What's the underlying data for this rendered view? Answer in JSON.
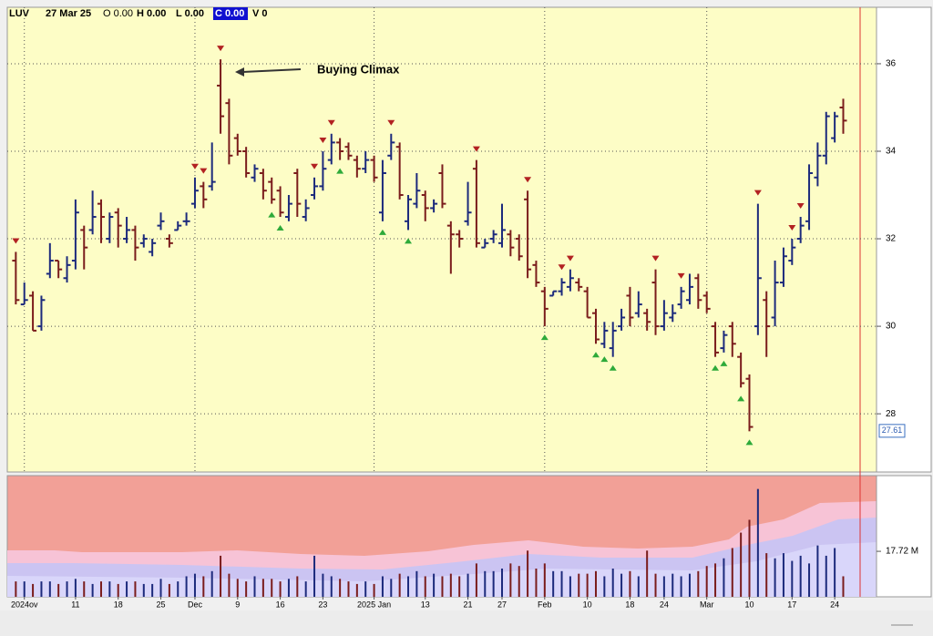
{
  "header": {
    "symbol": "LUV",
    "date": "27 Mar 25",
    "open": "O 0.00",
    "high": "H 0.00",
    "low": "L 0.00",
    "close": "C 0.00",
    "volume": "V 0"
  },
  "chart_data": {
    "type": "ohlc",
    "up_color": "#1c2a7c",
    "down_color": "#7a1c1c",
    "open": [
      31.5,
      30.5,
      30.7,
      30.0,
      31.2,
      31.5,
      31.1,
      31.5,
      32.2,
      32.2,
      32.8,
      32.0,
      32.6,
      32.0,
      32.2,
      31.9,
      31.7,
      32.3,
      32.0,
      32.2,
      32.4,
      32.8,
      33.2,
      33.2,
      35.5,
      35.1,
      34.3,
      34.0,
      33.4,
      33.5,
      33.3,
      33.1,
      32.5,
      33.5,
      32.5,
      33.0,
      33.2,
      33.8,
      34.2,
      34.1,
      33.8,
      33.6,
      33.8,
      32.6,
      33.9,
      34.1,
      32.4,
      32.8,
      33.0,
      32.7,
      33.5,
      32.3,
      32.1,
      32.4,
      33.6,
      31.8,
      32.0,
      31.9,
      32.1,
      32.0,
      32.9,
      31.4,
      30.8,
      30.7,
      30.8,
      30.9,
      31.0,
      30.8,
      30.3,
      29.6,
      29.5,
      30.0,
      30.7,
      30.3,
      30.3,
      31.0,
      30.0,
      30.2,
      30.5,
      30.6,
      31.1,
      30.7,
      30.0,
      29.5,
      30.0,
      29.3,
      28.8,
      30.0,
      30.6,
      30.2,
      31.0,
      31.5,
      32.0,
      32.4,
      33.4,
      33.9,
      34.3,
      35.0
    ],
    "high": [
      31.7,
      31.0,
      30.8,
      30.7,
      31.9,
      31.5,
      31.6,
      32.9,
      32.3,
      33.1,
      32.9,
      32.6,
      32.7,
      32.5,
      32.3,
      32.1,
      32.0,
      32.6,
      32.1,
      32.4,
      32.6,
      33.4,
      33.3,
      34.2,
      36.1,
      35.2,
      34.4,
      34.1,
      33.7,
      33.6,
      33.4,
      33.2,
      33.0,
      33.6,
      32.9,
      33.4,
      34.0,
      34.4,
      34.3,
      34.2,
      33.9,
      34.0,
      33.9,
      33.8,
      34.4,
      34.2,
      33.0,
      33.5,
      33.1,
      32.9,
      33.7,
      32.4,
      32.2,
      33.3,
      33.8,
      32.0,
      32.2,
      32.8,
      32.2,
      32.1,
      33.1,
      31.5,
      30.9,
      30.8,
      31.1,
      31.3,
      31.1,
      30.9,
      30.4,
      30.1,
      30.1,
      30.4,
      30.9,
      30.8,
      30.4,
      31.3,
      30.6,
      30.5,
      30.9,
      31.2,
      31.2,
      30.8,
      30.1,
      29.9,
      30.1,
      29.4,
      28.9,
      32.8,
      30.8,
      31.5,
      31.8,
      32.0,
      32.5,
      33.7,
      34.2,
      34.9,
      34.9,
      35.2
    ],
    "low": [
      30.5,
      30.5,
      29.9,
      29.9,
      31.1,
      31.1,
      31.0,
      31.3,
      31.3,
      32.1,
      31.9,
      31.9,
      31.8,
      31.9,
      31.5,
      31.8,
      31.6,
      32.2,
      31.8,
      32.2,
      32.3,
      32.7,
      32.7,
      33.1,
      34.4,
      33.7,
      33.9,
      33.4,
      33.3,
      32.9,
      32.8,
      32.5,
      32.4,
      32.5,
      32.4,
      32.9,
      33.1,
      33.7,
      33.8,
      33.8,
      33.4,
      33.5,
      33.3,
      32.4,
      33.8,
      32.9,
      32.2,
      32.7,
      32.4,
      32.6,
      32.7,
      31.2,
      31.8,
      32.3,
      31.8,
      31.8,
      31.9,
      31.8,
      31.6,
      31.5,
      31.1,
      30.9,
      30.0,
      30.7,
      30.7,
      30.8,
      30.8,
      30.2,
      29.6,
      29.5,
      29.3,
      29.9,
      30.0,
      30.2,
      29.9,
      29.8,
      29.9,
      30.1,
      30.4,
      30.5,
      30.4,
      30.3,
      29.3,
      29.4,
      29.3,
      28.6,
      27.6,
      29.8,
      29.3,
      30.0,
      30.9,
      31.4,
      31.9,
      32.2,
      33.2,
      33.7,
      34.2,
      34.4
    ],
    "close": [
      30.6,
      30.6,
      29.9,
      30.6,
      31.5,
      31.3,
      31.4,
      32.6,
      31.8,
      32.5,
      32.5,
      32.5,
      32.3,
      32.2,
      31.8,
      32.0,
      31.9,
      32.4,
      31.9,
      32.3,
      32.4,
      33.1,
      32.9,
      33.3,
      34.8,
      33.9,
      34.0,
      33.5,
      33.6,
      33.1,
      32.9,
      32.6,
      32.8,
      32.8,
      32.7,
      33.2,
      33.6,
      34.2,
      34.0,
      33.9,
      33.6,
      33.8,
      33.4,
      33.5,
      34.2,
      33.0,
      32.9,
      33.1,
      32.7,
      32.8,
      32.8,
      32.1,
      32.0,
      32.6,
      31.9,
      31.9,
      32.1,
      32.2,
      31.8,
      31.6,
      31.3,
      31.0,
      30.4,
      30.8,
      31.0,
      31.1,
      30.9,
      30.2,
      29.7,
      29.9,
      29.9,
      30.2,
      30.2,
      30.5,
      30.1,
      30.0,
      30.3,
      30.3,
      30.8,
      30.9,
      30.6,
      30.4,
      29.4,
      29.8,
      29.6,
      28.7,
      27.7,
      31.1,
      30.0,
      31.0,
      31.6,
      31.8,
      32.3,
      33.5,
      33.9,
      34.8,
      34.8,
      34.7
    ],
    "ylim": [
      26.67,
      37.29
    ],
    "yticks": [
      28,
      30,
      32,
      34,
      36
    ],
    "grid": true,
    "xlim": [
      -1,
      100.9
    ],
    "xticks": [
      {
        "value": 1,
        "label": "2024ov"
      },
      {
        "value": 7,
        "label": "11"
      },
      {
        "value": 12,
        "label": "18"
      },
      {
        "value": 17,
        "label": "25"
      },
      {
        "value": 21,
        "label": "Dec"
      },
      {
        "value": 26,
        "label": "9"
      },
      {
        "value": 31,
        "label": "16"
      },
      {
        "value": 36,
        "label": "23"
      },
      {
        "value": 42,
        "label": "2025 Jan"
      },
      {
        "value": 48,
        "label": "13"
      },
      {
        "value": 53,
        "label": "21"
      },
      {
        "value": 57,
        "label": "27"
      },
      {
        "value": 62,
        "label": "Feb"
      },
      {
        "value": 67,
        "label": "10"
      },
      {
        "value": 72,
        "label": "18"
      },
      {
        "value": 76,
        "label": "24"
      },
      {
        "value": 81,
        "label": "Mar"
      },
      {
        "value": 86,
        "label": "10"
      },
      {
        "value": 91,
        "label": "17"
      },
      {
        "value": 96,
        "label": "24"
      }
    ],
    "sell_signals": [
      0,
      21,
      22,
      24,
      35,
      36,
      37,
      44,
      54,
      60,
      64,
      65,
      75,
      78,
      87,
      91,
      92
    ],
    "buy_signals": [
      30,
      31,
      38,
      43,
      46,
      62,
      68,
      69,
      70,
      82,
      83,
      85,
      86
    ],
    "signal_up_color": "#2eaa3a",
    "signal_down_color": "#b22222",
    "annotation": "Buying Climax",
    "price_marker": 27.61,
    "volume": {
      "values": [
        6,
        6,
        5,
        6,
        6,
        5,
        6,
        7,
        6,
        5,
        6,
        6,
        5,
        6,
        6,
        5,
        5,
        7,
        5,
        6,
        8,
        9,
        8,
        10,
        16,
        9,
        7,
        6,
        8,
        7,
        7,
        6,
        7,
        8,
        6,
        16,
        9,
        8,
        7,
        6,
        5,
        6,
        5,
        8,
        7,
        9,
        8,
        10,
        8,
        9,
        8,
        9,
        8,
        9,
        13,
        10,
        10,
        11,
        13,
        12,
        18,
        11,
        13,
        10,
        10,
        8,
        9,
        9,
        10,
        8,
        11,
        9,
        10,
        8,
        18,
        9,
        8,
        9,
        8,
        9,
        10,
        12,
        13,
        15,
        19,
        25,
        30,
        42,
        17,
        15,
        17,
        14,
        16,
        13,
        20,
        16,
        19,
        8
      ],
      "ylim": [
        0,
        47.2
      ],
      "yticks": [
        {
          "value": 17.72,
          "label": "17.72 M"
        }
      ]
    }
  }
}
